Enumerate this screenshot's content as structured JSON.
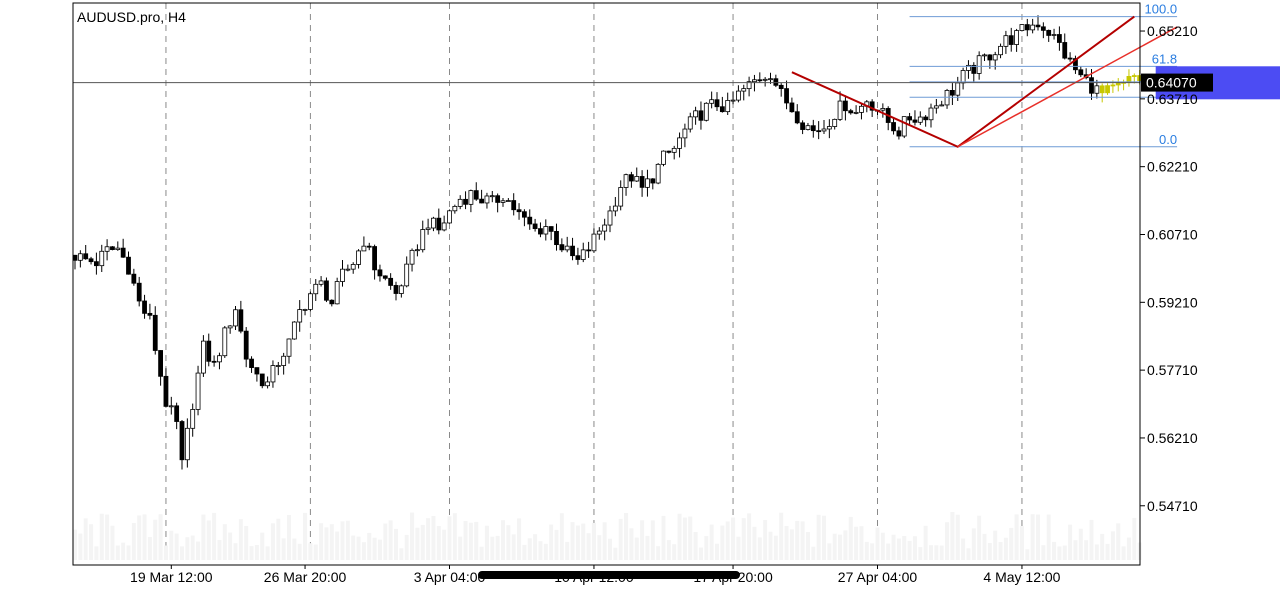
{
  "chart_data": {
    "type": "candlestick",
    "symbol_label": "AUDUSD.pro, H4",
    "ylim": [
      0.534,
      0.6583
    ],
    "y_ticks": [
      {
        "value": 0.6521,
        "label": "0.65210"
      },
      {
        "value": 0.6371,
        "label": "0.63710"
      },
      {
        "value": 0.6221,
        "label": "0.62210"
      },
      {
        "value": 0.6071,
        "label": "0.60710"
      },
      {
        "value": 0.5921,
        "label": "0.59210"
      },
      {
        "value": 0.5771,
        "label": "0.57710"
      },
      {
        "value": 0.5621,
        "label": "0.56210"
      },
      {
        "value": 0.5471,
        "label": "0.54710"
      }
    ],
    "x_ticks": [
      {
        "label": "19 Mar 12:00",
        "index": 18
      },
      {
        "label": "26 Mar 20:00",
        "index": 43
      },
      {
        "label": "3 Apr 04:00",
        "index": 70
      },
      {
        "label": "10 Apr 12:00",
        "index": 97
      },
      {
        "label": "17 Apr 20:00",
        "index": 123
      },
      {
        "label": "27 Apr 04:00",
        "index": 150
      },
      {
        "label": "4 May 12:00",
        "index": 177
      }
    ],
    "vertical_gridline_indices": [
      17,
      44,
      70,
      97,
      123,
      150,
      177
    ],
    "current_price": {
      "value": 0.6407,
      "label": "0.64070"
    },
    "close_path": [
      [
        0,
        0.6025
      ],
      [
        2,
        0.6015
      ],
      [
        4,
        0.601
      ],
      [
        6,
        0.6035
      ],
      [
        8,
        0.604
      ],
      [
        10,
        0.6
      ],
      [
        12,
        0.592
      ],
      [
        14,
        0.588
      ],
      [
        16,
        0.576
      ],
      [
        17,
        0.57
      ],
      [
        19,
        0.565
      ],
      [
        20,
        0.556
      ],
      [
        22,
        0.57
      ],
      [
        24,
        0.582
      ],
      [
        26,
        0.578
      ],
      [
        28,
        0.585
      ],
      [
        30,
        0.591
      ],
      [
        32,
        0.58
      ],
      [
        34,
        0.576
      ],
      [
        36,
        0.574
      ],
      [
        38,
        0.579
      ],
      [
        40,
        0.583
      ],
      [
        42,
        0.59
      ],
      [
        44,
        0.594
      ],
      [
        46,
        0.596
      ],
      [
        48,
        0.592
      ],
      [
        50,
        0.598
      ],
      [
        52,
        0.601
      ],
      [
        54,
        0.606
      ],
      [
        56,
        0.6
      ],
      [
        58,
        0.597
      ],
      [
        60,
        0.594
      ],
      [
        62,
        0.599
      ],
      [
        64,
        0.605
      ],
      [
        66,
        0.61
      ],
      [
        68,
        0.608
      ],
      [
        70,
        0.612
      ],
      [
        72,
        0.615
      ],
      [
        74,
        0.616
      ],
      [
        76,
        0.615
      ],
      [
        78,
        0.614
      ],
      [
        80,
        0.616
      ],
      [
        82,
        0.613
      ],
      [
        84,
        0.61
      ],
      [
        86,
        0.608
      ],
      [
        88,
        0.609
      ],
      [
        90,
        0.606
      ],
      [
        92,
        0.603
      ],
      [
        94,
        0.601
      ],
      [
        96,
        0.604
      ],
      [
        98,
        0.608
      ],
      [
        100,
        0.612
      ],
      [
        102,
        0.618
      ],
      [
        104,
        0.62
      ],
      [
        106,
        0.617
      ],
      [
        108,
        0.62
      ],
      [
        110,
        0.624
      ],
      [
        112,
        0.626
      ],
      [
        114,
        0.63
      ],
      [
        116,
        0.633
      ],
      [
        118,
        0.635
      ],
      [
        120,
        0.636
      ],
      [
        122,
        0.635
      ],
      [
        124,
        0.638
      ],
      [
        126,
        0.64
      ],
      [
        128,
        0.642
      ],
      [
        130,
        0.643
      ],
      [
        132,
        0.638
      ],
      [
        134,
        0.635
      ],
      [
        136,
        0.632
      ],
      [
        138,
        0.63
      ],
      [
        140,
        0.631
      ],
      [
        142,
        0.634
      ],
      [
        144,
        0.636
      ],
      [
        146,
        0.634
      ],
      [
        148,
        0.637
      ],
      [
        150,
        0.635
      ],
      [
        152,
        0.632
      ],
      [
        154,
        0.63
      ],
      [
        156,
        0.633
      ],
      [
        158,
        0.633
      ],
      [
        160,
        0.635
      ],
      [
        162,
        0.637
      ],
      [
        164,
        0.639
      ],
      [
        166,
        0.642
      ],
      [
        168,
        0.644
      ],
      [
        170,
        0.646
      ],
      [
        172,
        0.648
      ],
      [
        174,
        0.65
      ],
      [
        176,
        0.651
      ],
      [
        178,
        0.653
      ],
      [
        180,
        0.654
      ],
      [
        182,
        0.652
      ],
      [
        184,
        0.649
      ],
      [
        186,
        0.645
      ],
      [
        188,
        0.642
      ],
      [
        190,
        0.64
      ],
      [
        192,
        0.638
      ],
      [
        194,
        0.639
      ],
      [
        196,
        0.64
      ],
      [
        198,
        0.642
      ],
      [
        200,
        0.641
      ],
      [
        202,
        0.642
      ],
      [
        204,
        0.64
      ],
      [
        206,
        0.638
      ],
      [
        208,
        0.639
      ],
      [
        209,
        0.6395
      ]
    ],
    "highlighted_from_index": 192,
    "zigzag_points": [
      {
        "index": 134,
        "price": 0.643
      },
      {
        "index": 165,
        "price": 0.6265
      },
      {
        "index": 198,
        "price": 0.6553
      }
    ],
    "trend_line": {
      "start": {
        "index": 165,
        "price": 0.6265
      },
      "end": {
        "index": 206,
        "price": 0.653
      }
    },
    "fibonacci": {
      "start_index": 156,
      "end_index": 206,
      "levels": [
        {
          "label": "100.0",
          "value": 0.6553
        },
        {
          "label": "61.8",
          "value": 0.64427
        },
        {
          "label": "",
          "value": 0.64085
        },
        {
          "label": "",
          "value": 0.63745
        },
        {
          "label": "0.0",
          "value": 0.6265
        }
      ]
    },
    "highlight_box": {
      "start_index": 202,
      "end_index": 229,
      "top": 0.6443,
      "bottom": 0.637,
      "color": "#3d3df2"
    },
    "colors": {
      "bull_candle": "#ffffff",
      "bear_candle": "#000000",
      "candle_outline": "#000000",
      "highlight_candle": "#c8c800",
      "zigzag": "#b40000",
      "trend_line": "#e8302a",
      "fib_lines": "#6f9bd6",
      "fib_labels": "#2a7de0",
      "grid": "#8a8a8a",
      "price_line": "#555555",
      "price_tag_bg": "#000000",
      "price_tag_text": "#ffffff"
    }
  }
}
